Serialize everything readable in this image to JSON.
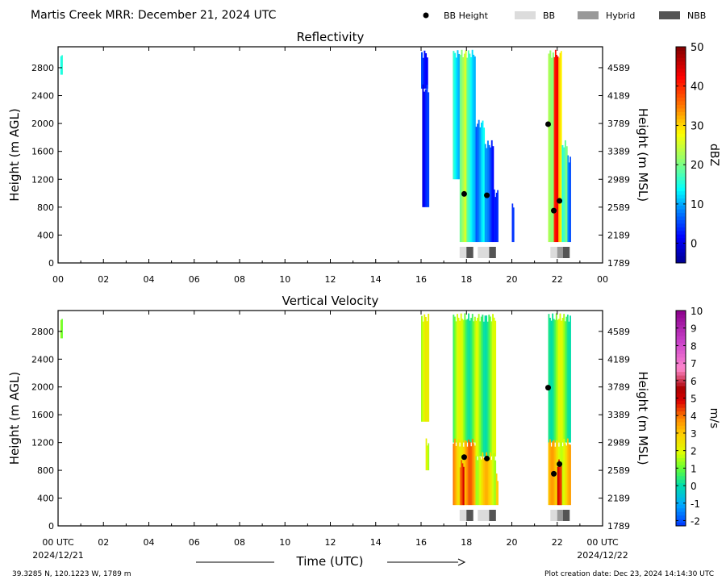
{
  "page": {
    "title": "Martis Creek MRR:  December 21, 2024 UTC",
    "legend": [
      {
        "label": "BB Height",
        "kind": "dot",
        "color": "#000000"
      },
      {
        "label": "BB",
        "kind": "box",
        "color": "#dcdcdc"
      },
      {
        "label": "Hybrid",
        "kind": "box",
        "color": "#999999"
      },
      {
        "label": "NBB",
        "kind": "box",
        "color": "#555555"
      }
    ],
    "xlabel": "Time (UTC)",
    "x_start_label": "00 UTC",
    "x_end_label": "00 UTC",
    "x_start_date": "2024/12/21",
    "x_end_date": "2024/12/22",
    "footer_left": "39.3285 N, 120.1223 W, 1789 m",
    "footer_right": "Plot creation date: Dec 23, 2024 14:14:30 UTC"
  },
  "chart_data": [
    {
      "type": "heatmap",
      "title": "Reflectivity",
      "ylabel": "Height (m AGL)",
      "ylabel_right": "Height (m MSL)",
      "xlim": [
        0,
        24
      ],
      "ylim": [
        0,
        3100
      ],
      "x_ticks": [
        "00",
        "02",
        "04",
        "06",
        "08",
        "10",
        "12",
        "14",
        "16",
        "18",
        "20",
        "22",
        "00"
      ],
      "y_ticks": [
        0,
        400,
        800,
        1200,
        1600,
        2000,
        2400,
        2800
      ],
      "y_ticks_right": [
        "1789",
        "2189",
        "2589",
        "2989",
        "3389",
        "3789",
        "4189",
        "4589"
      ],
      "colorbar": {
        "label": "dBZ",
        "range": [
          -5,
          50
        ],
        "ticks": [
          0,
          10,
          20,
          30,
          40,
          50
        ],
        "stops": [
          [
            "#00008f",
            0
          ],
          [
            "#0000ff",
            0.12
          ],
          [
            "#0080ff",
            0.24
          ],
          [
            "#00ffff",
            0.34
          ],
          [
            "#80ff80",
            0.46
          ],
          [
            "#ffff00",
            0.6
          ],
          [
            "#ff8000",
            0.72
          ],
          [
            "#ff0000",
            0.86
          ],
          [
            "#800000",
            1
          ]
        ]
      },
      "bb_height_points": [
        [
          17.9,
          990
        ],
        [
          18.9,
          970
        ],
        [
          21.6,
          1990
        ],
        [
          21.85,
          750
        ],
        [
          22.1,
          890
        ]
      ],
      "bb_type_segments": [
        {
          "type": "BB",
          "start": 17.7,
          "end": 18.0
        },
        {
          "type": "NBB",
          "start": 18.0,
          "end": 18.3
        },
        {
          "type": "BB",
          "start": 18.5,
          "end": 19.0
        },
        {
          "type": "NBB",
          "start": 19.0,
          "end": 19.3
        },
        {
          "type": "BB",
          "start": 21.7,
          "end": 22.0
        },
        {
          "type": "Hybrid",
          "start": 22.0,
          "end": 22.25
        },
        {
          "type": "NBB",
          "start": 22.25,
          "end": 22.55
        }
      ],
      "echo_regions": [
        {
          "start": 0.1,
          "end": 0.2,
          "bottom": 2700,
          "top": 3000,
          "level": 0.32
        },
        {
          "start": 16.0,
          "end": 16.3,
          "bottom": 2500,
          "top": 3000,
          "level": 0.2
        },
        {
          "start": 16.05,
          "end": 16.35,
          "bottom": 800,
          "top": 2500,
          "level": 0.1
        },
        {
          "start": 17.4,
          "end": 17.7,
          "bottom": 1200,
          "top": 3000,
          "level": 0.35
        },
        {
          "start": 17.7,
          "end": 18.0,
          "bottom": 300,
          "top": 3000,
          "level": 0.5
        },
        {
          "start": 18.0,
          "end": 18.4,
          "bottom": 300,
          "top": 3000,
          "level": 0.36
        },
        {
          "start": 18.4,
          "end": 18.8,
          "bottom": 300,
          "top": 2000,
          "level": 0.28
        },
        {
          "start": 18.8,
          "end": 19.2,
          "bottom": 300,
          "top": 1700,
          "level": 0.18
        },
        {
          "start": 19.2,
          "end": 19.4,
          "bottom": 300,
          "top": 1000,
          "level": 0.22
        },
        {
          "start": 20.0,
          "end": 20.1,
          "bottom": 300,
          "top": 800,
          "level": 0.1
        },
        {
          "start": 21.6,
          "end": 21.85,
          "bottom": 300,
          "top": 3000,
          "level": 0.55
        },
        {
          "start": 21.85,
          "end": 22.05,
          "bottom": 300,
          "top": 3000,
          "level": 0.8
        },
        {
          "start": 22.05,
          "end": 22.2,
          "bottom": 300,
          "top": 3000,
          "level": 0.66
        },
        {
          "start": 22.2,
          "end": 22.45,
          "bottom": 300,
          "top": 1700,
          "level": 0.4
        },
        {
          "start": 22.45,
          "end": 22.6,
          "bottom": 300,
          "top": 1500,
          "level": 0.2
        }
      ]
    },
    {
      "type": "heatmap",
      "title": "Vertical Velocity",
      "ylabel": "Height (m AGL)",
      "ylabel_right": "Height (m MSL)",
      "xlim": [
        0,
        24
      ],
      "ylim": [
        0,
        3100
      ],
      "x_ticks": [
        "",
        "02",
        "04",
        "06",
        "08",
        "10",
        "12",
        "14",
        "16",
        "18",
        "20",
        "22",
        ""
      ],
      "y_ticks": [
        0,
        400,
        800,
        1200,
        1600,
        2000,
        2400,
        2800
      ],
      "y_ticks_right": [
        "1789",
        "2189",
        "2589",
        "2989",
        "3389",
        "3789",
        "4189",
        "4589"
      ],
      "colorbar": {
        "label": "m/s",
        "range": [
          -2.3,
          10
        ],
        "ticks": [
          -2,
          -1,
          0,
          1,
          2,
          3,
          4,
          5,
          6,
          7,
          8,
          9,
          10
        ],
        "stops": [
          [
            "#0033ff",
            0
          ],
          [
            "#00aaff",
            0.1
          ],
          [
            "#00ddaa",
            0.19
          ],
          [
            "#66ff33",
            0.27
          ],
          [
            "#ddff00",
            0.34
          ],
          [
            "#ffcc00",
            0.43
          ],
          [
            "#ff8800",
            0.5
          ],
          [
            "#dd0000",
            0.58
          ],
          [
            "#aa0000",
            0.64
          ],
          [
            "#ff88cc",
            0.73
          ],
          [
            "#cc44cc",
            0.85
          ],
          [
            "#8b008b",
            1
          ]
        ]
      },
      "bb_height_points": [
        [
          17.9,
          990
        ],
        [
          18.9,
          970
        ],
        [
          21.6,
          1990
        ],
        [
          21.85,
          750
        ],
        [
          22.1,
          890
        ]
      ],
      "bb_type_segments": [
        {
          "type": "BB",
          "start": 17.7,
          "end": 18.0
        },
        {
          "type": "NBB",
          "start": 18.0,
          "end": 18.3
        },
        {
          "type": "BB",
          "start": 18.5,
          "end": 19.0
        },
        {
          "type": "NBB",
          "start": 19.0,
          "end": 19.3
        },
        {
          "type": "BB",
          "start": 21.7,
          "end": 22.0
        },
        {
          "type": "Hybrid",
          "start": 22.0,
          "end": 22.25
        },
        {
          "type": "NBB",
          "start": 22.25,
          "end": 22.55
        }
      ],
      "echo_regions": [
        {
          "start": 0.1,
          "end": 0.2,
          "bottom": 2700,
          "top": 3000,
          "level": 0.33
        },
        {
          "start": 16.0,
          "end": 16.35,
          "bottom": 1500,
          "top": 3000,
          "level": 0.3
        },
        {
          "start": 16.2,
          "end": 16.35,
          "bottom": 800,
          "top": 1200,
          "level": 0.35
        },
        {
          "start": 17.4,
          "end": 18.4,
          "bottom": 1200,
          "top": 3000,
          "level": 0.28
        },
        {
          "start": 17.4,
          "end": 18.4,
          "bottom": 300,
          "top": 1200,
          "level": 0.45
        },
        {
          "start": 17.7,
          "end": 17.9,
          "bottom": 300,
          "top": 900,
          "level": 0.58
        },
        {
          "start": 18.4,
          "end": 19.3,
          "bottom": 1000,
          "top": 3000,
          "level": 0.27
        },
        {
          "start": 18.4,
          "end": 19.3,
          "bottom": 300,
          "top": 1000,
          "level": 0.38
        },
        {
          "start": 19.3,
          "end": 19.4,
          "bottom": 300,
          "top": 700,
          "level": 0.35
        },
        {
          "start": 21.6,
          "end": 22.6,
          "bottom": 1200,
          "top": 3000,
          "level": 0.27
        },
        {
          "start": 21.6,
          "end": 22.6,
          "bottom": 300,
          "top": 1200,
          "level": 0.4
        },
        {
          "start": 22.0,
          "end": 22.2,
          "bottom": 300,
          "top": 900,
          "level": 0.62
        }
      ]
    }
  ]
}
